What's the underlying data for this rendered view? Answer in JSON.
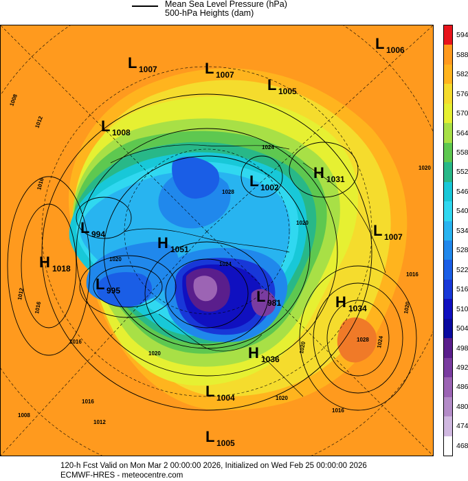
{
  "legend": {
    "line1": "Mean Sea Level Pressure (hPa)",
    "line2": "500-hPa Heights (dam)"
  },
  "colorbar": {
    "labels": [
      "594",
      "588",
      "582",
      "576",
      "570",
      "564",
      "558",
      "552",
      "546",
      "540",
      "534",
      "528",
      "522",
      "516",
      "510",
      "504",
      "498",
      "492",
      "486",
      "480",
      "474",
      "468"
    ],
    "colors": [
      "#e8141c",
      "#ff9a1e",
      "#ffb41e",
      "#f5dc2d",
      "#e6f032",
      "#a8e046",
      "#5ec850",
      "#28b888",
      "#18c8d8",
      "#30d8f0",
      "#28b4f0",
      "#2088ec",
      "#1a5ee6",
      "#1838d8",
      "#1010c0",
      "#0a0aa0",
      "#5a1e8c",
      "#7a3ca0",
      "#9c64b4",
      "#b48cc8",
      "#d0b8e0",
      "#ffffff"
    ]
  },
  "pressure_centers": [
    {
      "letter": "L",
      "value": "1006",
      "color": "#000"
    },
    {
      "letter": "L",
      "value": "1007",
      "color": "#000"
    },
    {
      "letter": "L",
      "value": "1007",
      "color": "#000"
    },
    {
      "letter": "L",
      "value": "1005",
      "color": "#000"
    },
    {
      "letter": "L",
      "value": "1008",
      "color": "#000"
    },
    {
      "letter": "H",
      "value": "1031",
      "color": "#000"
    },
    {
      "letter": "L",
      "value": "1002",
      "color": "#000"
    },
    {
      "letter": "L",
      "value": "994",
      "color": "#000"
    },
    {
      "letter": "L",
      "value": "1007",
      "color": "#000"
    },
    {
      "letter": "H",
      "value": "1051",
      "color": "#000"
    },
    {
      "letter": "H",
      "value": "1018",
      "color": "#000"
    },
    {
      "letter": "L",
      "value": "995",
      "color": "#000"
    },
    {
      "letter": "L",
      "value": "981",
      "color": "#000"
    },
    {
      "letter": "H",
      "value": "1034",
      "color": "#000"
    },
    {
      "letter": "H",
      "value": "1036",
      "color": "#000"
    },
    {
      "letter": "L",
      "value": "1004",
      "color": "#000"
    },
    {
      "letter": "L",
      "value": "1005",
      "color": "#000"
    }
  ],
  "isobar_labels": [
    "1008",
    "1012",
    "1016",
    "1024",
    "1020",
    "1012",
    "1016",
    "1020",
    "1024",
    "1028",
    "1020",
    "1016",
    "1016",
    "1020",
    "1020",
    "1016",
    "1012",
    "1008",
    "1016",
    "1020",
    "1028",
    "1024",
    "1020"
  ],
  "footer": {
    "line1": "120-h Fcst Valid on Mon Mar  2 00:00:00 2026, Initialized on Wed Feb 25 00:00:00 2026",
    "line2": "ECMWF-HRES  - meteocentre.com"
  }
}
